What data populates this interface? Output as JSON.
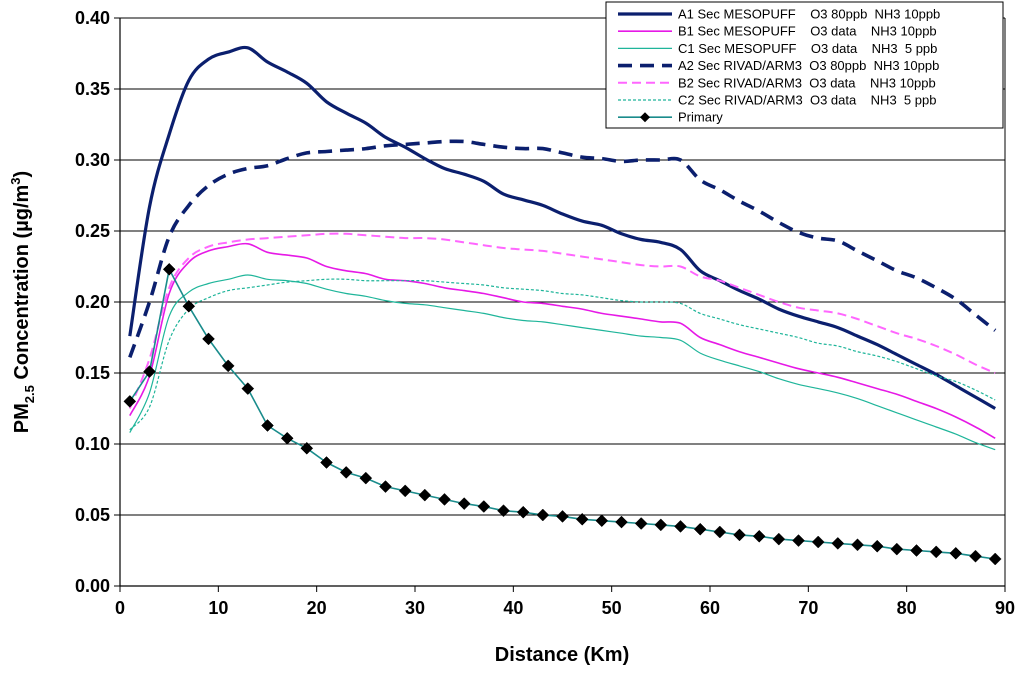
{
  "chart_data": {
    "type": "line",
    "xlabel": "Distance (Km)",
    "ylabel": {
      "base": "PM",
      "sub": "2.5",
      "rest": " Concentration (µg/m",
      "sup": "3",
      "end": ")"
    },
    "xlim": [
      0,
      90
    ],
    "ylim": [
      0,
      0.4
    ],
    "xticks": [
      "0",
      "10",
      "20",
      "30",
      "40",
      "50",
      "60",
      "70",
      "80",
      "90"
    ],
    "yticks": [
      "0.00",
      "0.05",
      "0.10",
      "0.15",
      "0.20",
      "0.25",
      "0.30",
      "0.35",
      "0.40"
    ],
    "grid": "horizontal",
    "legend_position": "top-right",
    "series": [
      {
        "name": "A1 Sec MESOPUFF    O3 80ppb  NH3 10ppb",
        "color": "#0b1f6e",
        "style": "solid-thick",
        "x": [
          1,
          3,
          5,
          7,
          9,
          11,
          13,
          15,
          17,
          19,
          21,
          23,
          25,
          27,
          29,
          31,
          33,
          35,
          37,
          39,
          41,
          43,
          45,
          47,
          49,
          51,
          53,
          55,
          57,
          59,
          61,
          63,
          65,
          67,
          69,
          71,
          73,
          75,
          77,
          79,
          81,
          83,
          85,
          87,
          89
        ],
        "y": [
          0.176,
          0.267,
          0.318,
          0.356,
          0.371,
          0.376,
          0.379,
          0.369,
          0.362,
          0.354,
          0.341,
          0.333,
          0.326,
          0.316,
          0.309,
          0.301,
          0.294,
          0.29,
          0.285,
          0.276,
          0.272,
          0.268,
          0.262,
          0.257,
          0.254,
          0.248,
          0.244,
          0.242,
          0.237,
          0.222,
          0.215,
          0.208,
          0.202,
          0.195,
          0.19,
          0.186,
          0.182,
          0.176,
          0.17,
          0.163,
          0.156,
          0.149,
          0.141,
          0.133,
          0.125
        ]
      },
      {
        "name": "B1 Sec MESOPUFF    O3 data    NH3 10ppb",
        "color": "#e619e6",
        "style": "solid",
        "x": [
          1,
          3,
          5,
          7,
          9,
          11,
          13,
          15,
          17,
          19,
          21,
          23,
          25,
          27,
          29,
          31,
          33,
          35,
          37,
          39,
          41,
          43,
          45,
          47,
          49,
          51,
          53,
          55,
          57,
          59,
          61,
          63,
          65,
          67,
          69,
          71,
          73,
          75,
          77,
          79,
          81,
          83,
          85,
          87,
          89
        ],
        "y": [
          0.12,
          0.148,
          0.206,
          0.228,
          0.236,
          0.239,
          0.241,
          0.235,
          0.233,
          0.231,
          0.225,
          0.222,
          0.22,
          0.216,
          0.215,
          0.213,
          0.21,
          0.208,
          0.206,
          0.203,
          0.2,
          0.199,
          0.197,
          0.195,
          0.192,
          0.19,
          0.188,
          0.186,
          0.185,
          0.175,
          0.17,
          0.165,
          0.161,
          0.157,
          0.153,
          0.15,
          0.147,
          0.143,
          0.139,
          0.135,
          0.13,
          0.125,
          0.119,
          0.112,
          0.104
        ]
      },
      {
        "name": "C1 Sec MESOPUFF    O3 data    NH3  5 ppb",
        "color": "#1fb59a",
        "style": "solid-thin",
        "x": [
          1,
          3,
          5,
          7,
          9,
          11,
          13,
          15,
          17,
          19,
          21,
          23,
          25,
          27,
          29,
          31,
          33,
          35,
          37,
          39,
          41,
          43,
          45,
          47,
          49,
          51,
          53,
          55,
          57,
          59,
          61,
          63,
          65,
          67,
          69,
          71,
          73,
          75,
          77,
          79,
          81,
          83,
          85,
          87,
          89
        ],
        "y": [
          0.108,
          0.136,
          0.19,
          0.207,
          0.213,
          0.216,
          0.219,
          0.216,
          0.215,
          0.213,
          0.209,
          0.206,
          0.204,
          0.201,
          0.199,
          0.198,
          0.196,
          0.194,
          0.192,
          0.189,
          0.187,
          0.186,
          0.184,
          0.182,
          0.18,
          0.178,
          0.176,
          0.175,
          0.173,
          0.164,
          0.159,
          0.155,
          0.151,
          0.146,
          0.142,
          0.139,
          0.136,
          0.132,
          0.127,
          0.122,
          0.117,
          0.112,
          0.107,
          0.101,
          0.096
        ]
      },
      {
        "name": "A2 Sec RIVAD/ARM3  O3 80ppb  NH3 10ppb",
        "color": "#0b1f6e",
        "style": "dashed-thick",
        "x": [
          1,
          3,
          5,
          7,
          9,
          11,
          13,
          15,
          17,
          19,
          21,
          23,
          25,
          27,
          29,
          31,
          33,
          35,
          37,
          39,
          41,
          43,
          45,
          47,
          49,
          51,
          53,
          55,
          57,
          59,
          61,
          63,
          65,
          67,
          69,
          71,
          73,
          75,
          77,
          79,
          81,
          83,
          85,
          87,
          89
        ],
        "y": [
          0.161,
          0.2,
          0.246,
          0.268,
          0.282,
          0.29,
          0.294,
          0.296,
          0.301,
          0.305,
          0.306,
          0.307,
          0.308,
          0.31,
          0.311,
          0.312,
          0.313,
          0.313,
          0.311,
          0.309,
          0.308,
          0.308,
          0.305,
          0.302,
          0.301,
          0.299,
          0.3,
          0.3,
          0.3,
          0.286,
          0.279,
          0.271,
          0.264,
          0.256,
          0.249,
          0.245,
          0.243,
          0.236,
          0.229,
          0.222,
          0.217,
          0.21,
          0.202,
          0.191,
          0.18
        ]
      },
      {
        "name": "B2 Sec RIVAD/ARM3  O3 data    NH3 10ppb",
        "color": "#ff66ff",
        "style": "dashed",
        "x": [
          1,
          3,
          5,
          7,
          9,
          11,
          13,
          15,
          17,
          19,
          21,
          23,
          25,
          27,
          29,
          31,
          33,
          35,
          37,
          39,
          41,
          43,
          45,
          47,
          49,
          51,
          53,
          55,
          57,
          59,
          61,
          63,
          65,
          67,
          69,
          71,
          73,
          75,
          77,
          79,
          81,
          83,
          85,
          87,
          89
        ],
        "y": [
          0.125,
          0.16,
          0.21,
          0.231,
          0.239,
          0.242,
          0.244,
          0.245,
          0.246,
          0.247,
          0.248,
          0.248,
          0.247,
          0.246,
          0.245,
          0.245,
          0.244,
          0.242,
          0.24,
          0.238,
          0.237,
          0.236,
          0.234,
          0.232,
          0.23,
          0.228,
          0.226,
          0.225,
          0.225,
          0.218,
          0.215,
          0.21,
          0.205,
          0.2,
          0.196,
          0.194,
          0.192,
          0.188,
          0.183,
          0.178,
          0.174,
          0.169,
          0.163,
          0.156,
          0.15
        ]
      },
      {
        "name": "C2 Sec RIVAD/ARM3  O3 data    NH3  5 ppb",
        "color": "#1fb59a",
        "style": "dotted",
        "x": [
          1,
          3,
          5,
          7,
          9,
          11,
          13,
          15,
          17,
          19,
          21,
          23,
          25,
          27,
          29,
          31,
          33,
          35,
          37,
          39,
          41,
          43,
          45,
          47,
          49,
          51,
          53,
          55,
          57,
          59,
          61,
          63,
          65,
          67,
          69,
          71,
          73,
          75,
          77,
          79,
          81,
          83,
          85,
          87,
          89
        ],
        "y": [
          0.11,
          0.126,
          0.173,
          0.195,
          0.203,
          0.208,
          0.21,
          0.212,
          0.214,
          0.215,
          0.216,
          0.216,
          0.215,
          0.215,
          0.215,
          0.215,
          0.214,
          0.213,
          0.212,
          0.21,
          0.209,
          0.208,
          0.206,
          0.205,
          0.203,
          0.201,
          0.2,
          0.2,
          0.199,
          0.192,
          0.188,
          0.184,
          0.181,
          0.178,
          0.175,
          0.171,
          0.169,
          0.165,
          0.162,
          0.158,
          0.153,
          0.148,
          0.144,
          0.138,
          0.131
        ]
      },
      {
        "name": "Primary",
        "color": "#1a8c8c",
        "marker_color": "#000000",
        "style": "markers",
        "x": [
          1,
          3,
          5,
          7,
          9,
          11,
          13,
          15,
          17,
          19,
          21,
          23,
          25,
          27,
          29,
          31,
          33,
          35,
          37,
          39,
          41,
          43,
          45,
          47,
          49,
          51,
          53,
          55,
          57,
          59,
          61,
          63,
          65,
          67,
          69,
          71,
          73,
          75,
          77,
          79,
          81,
          83,
          85,
          87,
          89
        ],
        "y": [
          0.13,
          0.151,
          0.223,
          0.197,
          0.174,
          0.155,
          0.139,
          0.113,
          0.104,
          0.097,
          0.087,
          0.08,
          0.076,
          0.07,
          0.067,
          0.064,
          0.061,
          0.058,
          0.056,
          0.053,
          0.052,
          0.05,
          0.049,
          0.047,
          0.046,
          0.045,
          0.044,
          0.043,
          0.042,
          0.04,
          0.038,
          0.036,
          0.035,
          0.033,
          0.032,
          0.031,
          0.03,
          0.029,
          0.028,
          0.026,
          0.025,
          0.024,
          0.023,
          0.021,
          0.019
        ]
      }
    ]
  }
}
